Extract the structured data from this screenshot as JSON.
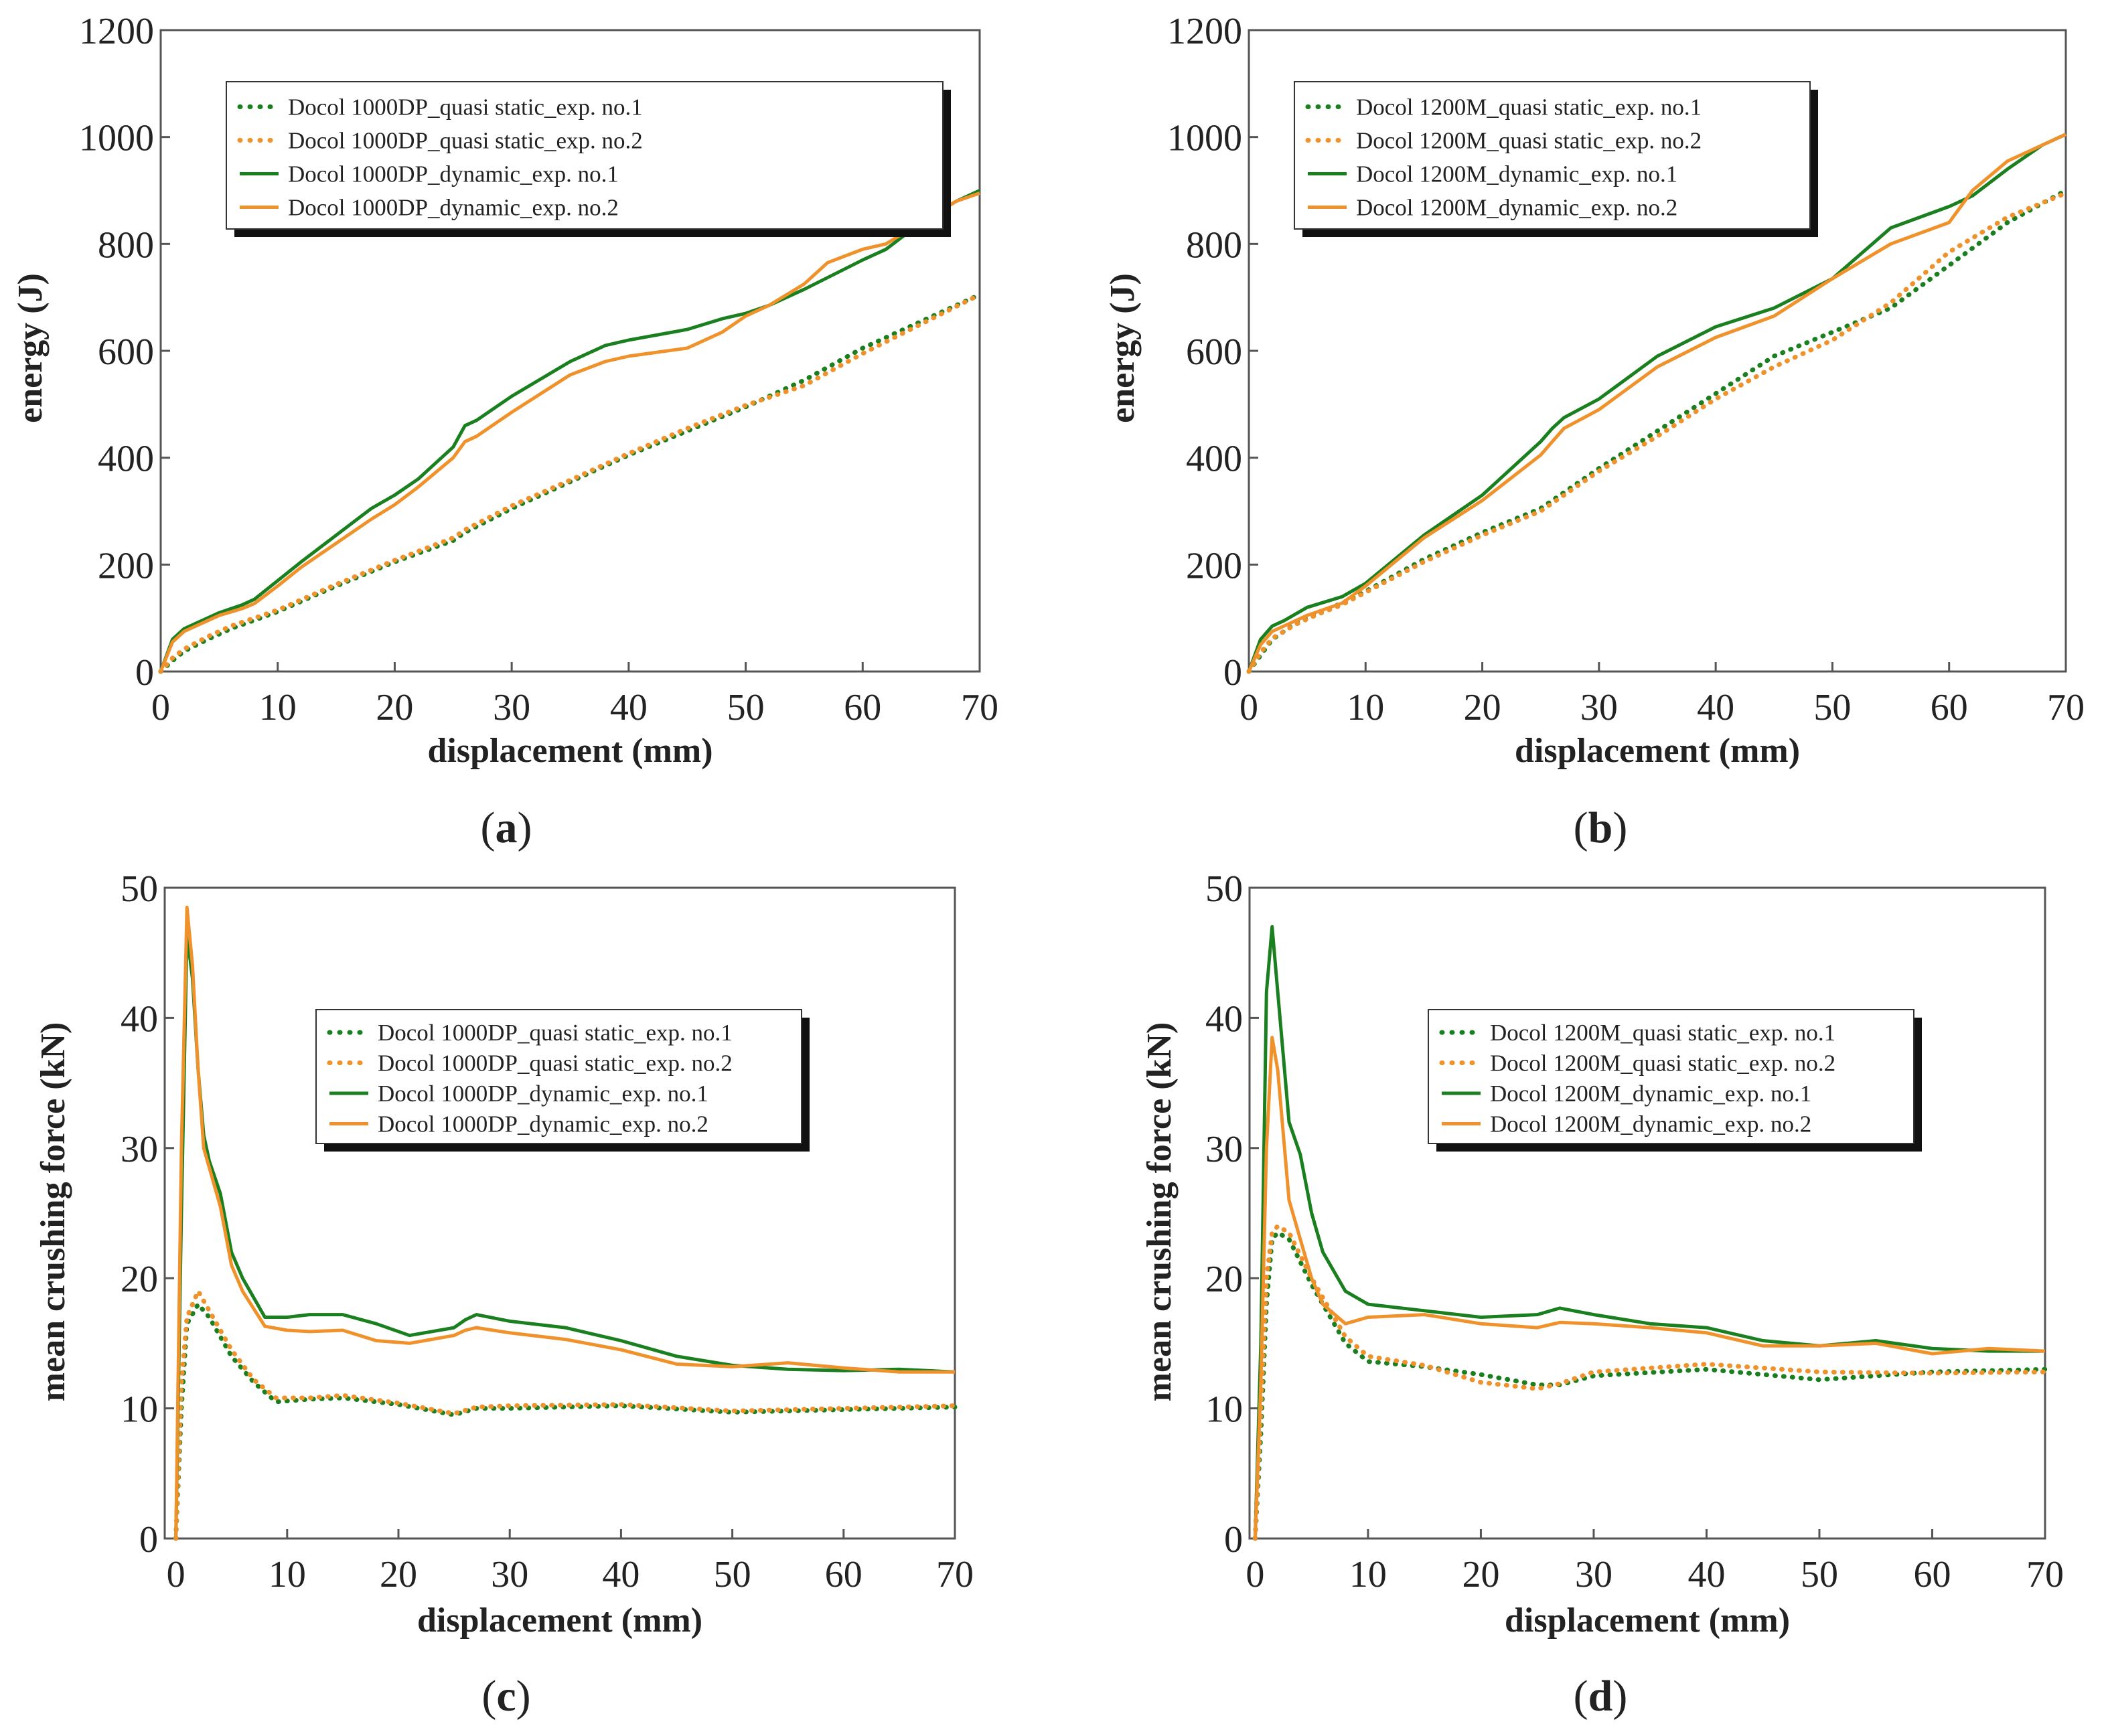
{
  "colors": {
    "green": "#1a7f1e",
    "orange": "#f0922b"
  },
  "chart_data": [
    {
      "id": "a",
      "caption": "a",
      "type": "line",
      "xlabel": "displacement (mm)",
      "ylabel": "energy (J)",
      "xlim": [
        0,
        70
      ],
      "ylim": [
        0,
        1200
      ],
      "xticks": [
        "0",
        "10",
        "20",
        "30",
        "40",
        "50",
        "60",
        "70"
      ],
      "yticks": [
        "0",
        "200",
        "400",
        "600",
        "800",
        "1000",
        "1200"
      ],
      "legend_position": "top-left",
      "series": [
        {
          "name": "Docol 1000DP_quasi static_exp. no.1",
          "color": "green",
          "style": "dotted",
          "x": [
            0,
            1,
            2,
            4,
            6,
            8,
            10,
            15,
            20,
            25,
            26,
            30,
            35,
            40,
            45,
            50,
            55,
            60,
            65,
            70
          ],
          "y": [
            0,
            20,
            38,
            60,
            80,
            96,
            112,
            160,
            205,
            245,
            260,
            305,
            355,
            405,
            450,
            495,
            545,
            605,
            655,
            705
          ]
        },
        {
          "name": "Docol 1000DP_quasi static_exp. no.2",
          "color": "orange",
          "style": "dotted",
          "x": [
            0,
            1,
            2,
            4,
            6,
            8,
            10,
            15,
            20,
            25,
            26,
            30,
            35,
            40,
            45,
            50,
            55,
            60,
            65,
            70
          ],
          "y": [
            0,
            25,
            42,
            65,
            85,
            100,
            115,
            163,
            208,
            250,
            265,
            310,
            358,
            408,
            455,
            498,
            535,
            595,
            650,
            705
          ]
        },
        {
          "name": "Docol 1000DP_dynamic_exp. no.1",
          "color": "green",
          "style": "solid",
          "x": [
            0,
            1,
            2,
            3,
            5,
            7,
            8,
            10,
            12,
            15,
            18,
            20,
            22,
            25,
            26,
            27,
            30,
            35,
            38,
            40,
            45,
            48,
            50,
            52,
            55,
            60,
            62,
            65,
            68,
            70
          ],
          "y": [
            0,
            60,
            80,
            90,
            110,
            125,
            135,
            170,
            205,
            255,
            305,
            330,
            360,
            420,
            460,
            470,
            515,
            580,
            610,
            620,
            640,
            660,
            670,
            685,
            715,
            770,
            790,
            840,
            880,
            900
          ]
        },
        {
          "name": "Docol 1000DP_dynamic_exp. no.2",
          "color": "orange",
          "style": "solid",
          "x": [
            0,
            1,
            2,
            3,
            5,
            7,
            8,
            10,
            12,
            15,
            18,
            20,
            22,
            25,
            26,
            27,
            30,
            35,
            38,
            40,
            45,
            48,
            50,
            52,
            55,
            57,
            60,
            62,
            65,
            68,
            70
          ],
          "y": [
            0,
            55,
            75,
            85,
            105,
            118,
            127,
            160,
            195,
            240,
            285,
            312,
            345,
            400,
            430,
            440,
            485,
            555,
            580,
            590,
            605,
            635,
            665,
            685,
            725,
            765,
            790,
            800,
            840,
            880,
            895
          ]
        }
      ]
    },
    {
      "id": "b",
      "caption": "b",
      "type": "line",
      "xlabel": "displacement (mm)",
      "ylabel": "energy (J)",
      "xlim": [
        0,
        70
      ],
      "ylim": [
        0,
        1200
      ],
      "xticks": [
        "0",
        "10",
        "20",
        "30",
        "40",
        "50",
        "60",
        "70"
      ],
      "yticks": [
        "0",
        "200",
        "400",
        "600",
        "800",
        "1000",
        "1200"
      ],
      "legend_position": "top-left",
      "series": [
        {
          "name": "Docol 1200M_quasi static_exp. no.1",
          "color": "green",
          "style": "dotted",
          "x": [
            0,
            1,
            2,
            4,
            6,
            8,
            10,
            15,
            20,
            25,
            28,
            30,
            35,
            40,
            45,
            50,
            55,
            60,
            65,
            70
          ],
          "y": [
            0,
            30,
            60,
            90,
            110,
            128,
            150,
            210,
            260,
            305,
            350,
            380,
            450,
            520,
            590,
            635,
            680,
            760,
            840,
            900
          ]
        },
        {
          "name": "Docol 1200M_quasi static_exp. no.2",
          "color": "orange",
          "style": "dotted",
          "x": [
            0,
            1,
            2,
            4,
            6,
            8,
            10,
            15,
            20,
            25,
            28,
            30,
            35,
            40,
            45,
            50,
            55,
            60,
            65,
            70
          ],
          "y": [
            0,
            35,
            62,
            88,
            108,
            125,
            148,
            205,
            255,
            300,
            345,
            375,
            440,
            510,
            570,
            620,
            690,
            785,
            850,
            895
          ]
        },
        {
          "name": "Docol 1200M_dynamic_exp. no.1",
          "color": "green",
          "style": "solid",
          "x": [
            0,
            1,
            2,
            3,
            5,
            8,
            10,
            15,
            20,
            25,
            26,
            27,
            30,
            35,
            40,
            45,
            50,
            55,
            60,
            62,
            65,
            68,
            70
          ],
          "y": [
            0,
            60,
            85,
            95,
            120,
            140,
            165,
            255,
            330,
            430,
            455,
            475,
            510,
            590,
            645,
            680,
            735,
            830,
            870,
            890,
            940,
            985,
            1005
          ]
        },
        {
          "name": "Docol 1200M_dynamic_exp. no.2",
          "color": "orange",
          "style": "solid",
          "x": [
            0,
            1,
            2,
            3,
            5,
            8,
            10,
            15,
            20,
            25,
            26,
            27,
            30,
            35,
            40,
            45,
            50,
            55,
            60,
            62,
            65,
            68,
            70
          ],
          "y": [
            0,
            50,
            75,
            85,
            105,
            128,
            160,
            250,
            320,
            405,
            430,
            455,
            490,
            570,
            625,
            665,
            735,
            800,
            840,
            900,
            955,
            985,
            1005
          ]
        }
      ]
    },
    {
      "id": "c",
      "caption": "c",
      "type": "line",
      "xlabel": "displacement (mm)",
      "ylabel": "mean crushing force  (kN)",
      "xlim": [
        -1,
        70
      ],
      "ylim": [
        0,
        50
      ],
      "xticks": [
        "0",
        "10",
        "20",
        "30",
        "40",
        "50",
        "60",
        "70"
      ],
      "yticks": [
        "0",
        "10",
        "20",
        "30",
        "40",
        "50"
      ],
      "legend_position": "top-right",
      "series": [
        {
          "name": "Docol 1000DP_quasi static_exp. no.1",
          "color": "green",
          "style": "dotted",
          "x": [
            0,
            0.5,
            1,
            2,
            3,
            5,
            7,
            9,
            12,
            15,
            20,
            25,
            27,
            30,
            40,
            50,
            60,
            70
          ],
          "y": [
            0,
            10,
            16.5,
            18,
            17,
            14,
            12,
            10.5,
            10.7,
            10.8,
            10.3,
            9.5,
            10.0,
            10.0,
            10.2,
            9.7,
            9.9,
            10.1
          ]
        },
        {
          "name": "Docol 1000DP_quasi static_exp. no.2",
          "color": "orange",
          "style": "dotted",
          "x": [
            0,
            0.5,
            1,
            2,
            3,
            5,
            7,
            9,
            12,
            15,
            20,
            25,
            27,
            30,
            40,
            50,
            60,
            70
          ],
          "y": [
            0,
            12,
            17,
            19,
            17.5,
            14.5,
            12.2,
            10.8,
            10.8,
            11.0,
            10.4,
            9.6,
            10.1,
            10.2,
            10.3,
            9.8,
            10.0,
            10.2
          ]
        },
        {
          "name": "Docol 1000DP_dynamic_exp. no.1",
          "color": "green",
          "style": "solid",
          "x": [
            0,
            0.5,
            1,
            1.5,
            2,
            2.5,
            3,
            4,
            5,
            6,
            8,
            10,
            12,
            15,
            18,
            21,
            25,
            26,
            27,
            30,
            35,
            40,
            45,
            50,
            55,
            60,
            65,
            70
          ],
          "y": [
            0,
            25,
            46.5,
            43,
            36,
            31,
            29,
            26.5,
            22,
            20,
            17,
            17,
            17.2,
            17.2,
            16.5,
            15.6,
            16.2,
            16.8,
            17.2,
            16.7,
            16.2,
            15.2,
            14.0,
            13.3,
            13.0,
            12.9,
            13.0,
            12.8
          ]
        },
        {
          "name": "Docol 1000DP_dynamic_exp. no.2",
          "color": "orange",
          "style": "solid",
          "x": [
            0,
            0.5,
            1,
            1.5,
            2,
            2.5,
            3,
            4,
            5,
            6,
            8,
            10,
            12,
            15,
            18,
            21,
            25,
            26,
            27,
            30,
            35,
            40,
            45,
            50,
            55,
            60,
            65,
            70
          ],
          "y": [
            0,
            30,
            48.5,
            44,
            36,
            30,
            28.5,
            25.5,
            21,
            19,
            16.3,
            16,
            15.9,
            16.0,
            15.2,
            15.0,
            15.6,
            16.0,
            16.2,
            15.8,
            15.3,
            14.5,
            13.4,
            13.2,
            13.5,
            13.1,
            12.8,
            12.8
          ]
        }
      ]
    },
    {
      "id": "d",
      "caption": "d",
      "type": "line",
      "xlabel": "displacement (mm)",
      "ylabel": "mean crushing force  (kN)",
      "xlim": [
        -0.5,
        70
      ],
      "ylim": [
        0,
        50
      ],
      "xticks": [
        "0",
        "10",
        "20",
        "30",
        "40",
        "50",
        "60",
        "70"
      ],
      "yticks": [
        "0",
        "10",
        "20",
        "30",
        "40",
        "50"
      ],
      "legend_position": "top-right",
      "series": [
        {
          "name": "Docol 1200M_quasi static_exp. no.1",
          "color": "green",
          "style": "dotted",
          "x": [
            0,
            0.5,
            1,
            1.5,
            2,
            3,
            5,
            8,
            10,
            15,
            20,
            25,
            27,
            30,
            40,
            50,
            60,
            70
          ],
          "y": [
            0,
            8,
            18,
            23,
            23.5,
            23,
            19.5,
            15,
            13.6,
            13.2,
            12.6,
            11.8,
            11.8,
            12.5,
            13.0,
            12.2,
            12.8,
            13.0
          ]
        },
        {
          "name": "Docol 1200M_quasi static_exp. no.2",
          "color": "orange",
          "style": "dotted",
          "x": [
            0,
            0.5,
            1,
            1.5,
            2,
            3,
            5,
            8,
            10,
            15,
            20,
            25,
            27,
            30,
            40,
            50,
            60,
            70
          ],
          "y": [
            0,
            10,
            20,
            23.5,
            24,
            23.5,
            20,
            15.5,
            14.0,
            13.3,
            12.0,
            11.5,
            11.9,
            12.8,
            13.4,
            12.8,
            12.7,
            12.8
          ]
        },
        {
          "name": "Docol 1200M_dynamic_exp. no.1",
          "color": "green",
          "style": "solid",
          "x": [
            0,
            0.5,
            1,
            1.5,
            2,
            3,
            4,
            5,
            6,
            8,
            10,
            15,
            20,
            25,
            27,
            30,
            35,
            40,
            45,
            50,
            55,
            60,
            65,
            70
          ],
          "y": [
            0,
            15,
            42,
            47,
            42,
            32,
            29.5,
            25,
            22,
            19,
            18,
            17.5,
            17.0,
            17.2,
            17.7,
            17.2,
            16.5,
            16.2,
            15.2,
            14.8,
            15.2,
            14.6,
            14.4,
            14.4
          ]
        },
        {
          "name": "Docol 1200M_dynamic_exp. no.2",
          "color": "orange",
          "style": "solid",
          "x": [
            0,
            0.5,
            1,
            1.5,
            2,
            3,
            4,
            5,
            6,
            8,
            10,
            15,
            20,
            25,
            27,
            30,
            35,
            40,
            45,
            50,
            55,
            60,
            65,
            70
          ],
          "y": [
            0,
            12,
            30,
            38.5,
            36,
            26,
            23,
            20,
            18,
            16.5,
            17,
            17.2,
            16.5,
            16.2,
            16.6,
            16.5,
            16.2,
            15.8,
            14.8,
            14.8,
            15.0,
            14.2,
            14.6,
            14.4
          ]
        }
      ]
    }
  ]
}
